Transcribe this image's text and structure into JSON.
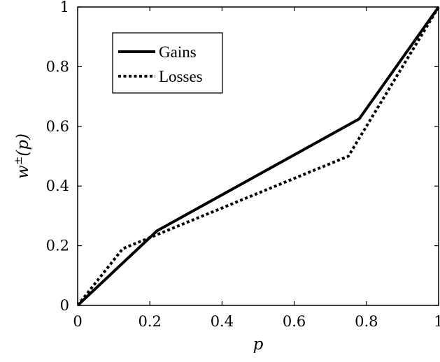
{
  "chart_data": {
    "type": "line",
    "title": "",
    "xlabel": "p",
    "ylabel": "w±(p)",
    "ylabel_base": "w",
    "ylabel_superscript": "±",
    "ylabel_rest": "(p)",
    "xlim": [
      0,
      1
    ],
    "ylim": [
      0,
      1
    ],
    "grid": false,
    "legend_position": "top-left",
    "xticks": [
      0,
      0.2,
      0.4,
      0.6,
      0.8,
      1
    ],
    "xtick_labels": [
      "0",
      "0.2",
      "0.4",
      "0.6",
      "0.8",
      "1"
    ],
    "yticks": [
      0,
      0.2,
      0.4,
      0.6,
      0.8,
      1
    ],
    "ytick_labels": [
      "0",
      "0.2",
      "0.4",
      "0.6",
      "0.8",
      "1"
    ],
    "series": [
      {
        "name": "Gains",
        "style": "solid",
        "color": "#000000",
        "x": [
          0,
          0.22,
          0.78,
          1
        ],
        "y": [
          0,
          0.25,
          0.625,
          1
        ]
      },
      {
        "name": "Losses",
        "style": "dotted",
        "color": "#000000",
        "x": [
          0,
          0.125,
          0.75,
          1
        ],
        "y": [
          0,
          0.19,
          0.5,
          1
        ]
      }
    ]
  }
}
